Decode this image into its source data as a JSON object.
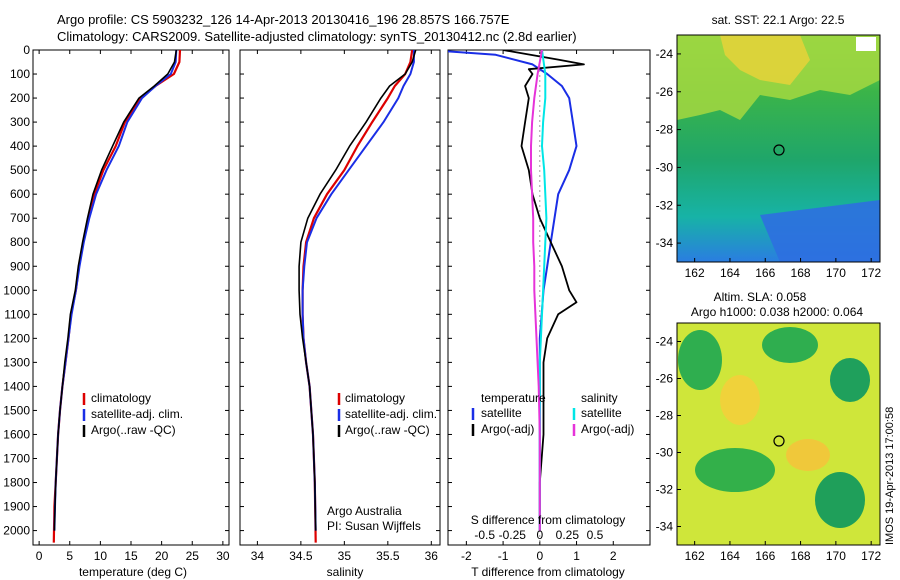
{
  "header": {
    "line1": "Argo profile: CS 5903232_126 14-Apr-2013 20130416_196 28.857S 166.757E",
    "line2": "Climatology: CARS2009. Satellite-adjusted climatology: synTS_20130412.nc (2.8d earlier)"
  },
  "colors": {
    "climatology": "#dd0000",
    "satellite": "#1a2ee6",
    "argo": "#000000",
    "satellite_s": "#00e6e6",
    "argo_s": "#e633d9"
  },
  "depth_ticks": [
    "0",
    "100",
    "200",
    "300",
    "400",
    "500",
    "600",
    "700",
    "800",
    "900",
    "1000",
    "1100",
    "1200",
    "1300",
    "1400",
    "1500",
    "1600",
    "1700",
    "1800",
    "1900",
    "2000"
  ],
  "panel_temperature": {
    "xlabel": "temperature (deg C)",
    "xticks": [
      "0",
      "5",
      "10",
      "15",
      "20",
      "25",
      "30"
    ],
    "legend": [
      "climatology",
      "satellite-adj. clim.",
      "Argo(..raw -QC)"
    ]
  },
  "panel_salinity": {
    "xlabel": "salinity",
    "xticks": [
      "34",
      "34.5",
      "35",
      "35.5",
      "36"
    ],
    "legend": [
      "climatology",
      "satellite-adj. clim.",
      "Argo(..raw -QC)"
    ],
    "credit1": "Argo Australia",
    "credit2": "PI: Susan Wijffels"
  },
  "panel_difference": {
    "xlabel": "T difference from climatology",
    "toplabel": "S difference from climatology",
    "s_ticks": [
      "-0.5",
      "-0.25",
      "0",
      "0.25",
      "0.5"
    ],
    "t_ticks": [
      "-2",
      "-1",
      "0",
      "1",
      "2"
    ],
    "legend_t_title": "temperature",
    "legend_s_title": "salinity",
    "legend_t": [
      "satellite",
      "Argo(-adj)"
    ],
    "legend_s": [
      "satellite",
      "Argo(-adj)"
    ]
  },
  "map_sst": {
    "title": "sat. SST: 22.1  Argo: 22.5",
    "yticks": [
      "-24",
      "-26",
      "-28",
      "-30",
      "-32",
      "-34"
    ],
    "xticks": [
      "162",
      "164",
      "166",
      "168",
      "170",
      "172"
    ]
  },
  "map_sla": {
    "title1": "Altim. SLA: 0.058",
    "title2": "Argo h1000: 0.038 h2000: 0.064",
    "yticks": [
      "-24",
      "-26",
      "-28",
      "-30",
      "-32",
      "-34"
    ],
    "xticks": [
      "162",
      "164",
      "166",
      "168",
      "170",
      "172"
    ]
  },
  "side_text": "IMOS 19-Apr-2013 17:00:58",
  "chart_data": [
    {
      "type": "line",
      "panel": "temperature",
      "xlabel": "temperature (deg C)",
      "xlim": [
        -1,
        31
      ],
      "ylim": [
        2060,
        0
      ],
      "series": [
        {
          "name": "climatology",
          "x": [
            23.0,
            22.9,
            22.0,
            19.0,
            16.5,
            14.0,
            12.5,
            10.5,
            9.0,
            8.0,
            7.2,
            6.5,
            6.0,
            5.2,
            4.8,
            4.3,
            3.8,
            3.4,
            3.1,
            2.9,
            2.7,
            2.5,
            2.4
          ],
          "y": [
            0,
            50,
            100,
            150,
            200,
            300,
            400,
            500,
            600,
            700,
            800,
            900,
            1000,
            1100,
            1200,
            1300,
            1400,
            1500,
            1600,
            1700,
            1800,
            1900,
            2050
          ]
        },
        {
          "name": "satellite-adj. clim.",
          "x": [
            22.4,
            22.3,
            21.5,
            19.0,
            16.8,
            14.4,
            13.0,
            11.0,
            9.3,
            8.2,
            7.3,
            6.6,
            6.0,
            5.3,
            4.8,
            4.3,
            3.8,
            3.4,
            3.1,
            2.9,
            2.7,
            2.6,
            2.5
          ],
          "y": [
            0,
            50,
            100,
            150,
            200,
            300,
            400,
            500,
            600,
            700,
            800,
            900,
            1000,
            1100,
            1200,
            1300,
            1400,
            1500,
            1600,
            1700,
            1800,
            1900,
            2000
          ]
        },
        {
          "name": "Argo(..raw -QC)",
          "x": [
            22.4,
            22.1,
            21.0,
            18.8,
            16.3,
            13.8,
            12.0,
            10.2,
            8.8,
            7.9,
            7.1,
            6.4,
            5.9,
            5.1,
            4.7,
            4.2,
            3.8,
            3.4,
            3.1,
            2.9,
            2.7,
            2.6,
            2.5
          ],
          "y": [
            0,
            50,
            100,
            150,
            200,
            300,
            400,
            500,
            600,
            700,
            800,
            900,
            1000,
            1100,
            1200,
            1300,
            1400,
            1500,
            1600,
            1700,
            1800,
            1900,
            2000
          ]
        }
      ]
    },
    {
      "type": "line",
      "panel": "salinity",
      "xlabel": "salinity",
      "xlim": [
        33.8,
        36.1
      ],
      "ylim": [
        2060,
        0
      ],
      "series": [
        {
          "name": "climatology",
          "x": [
            35.78,
            35.76,
            35.7,
            35.58,
            35.5,
            35.32,
            35.15,
            35.0,
            34.8,
            34.65,
            34.56,
            34.53,
            34.52,
            34.52,
            34.53,
            34.56,
            34.6,
            34.62,
            34.64,
            34.65,
            34.66,
            34.67
          ],
          "y": [
            0,
            50,
            100,
            150,
            200,
            300,
            400,
            500,
            600,
            700,
            800,
            900,
            1000,
            1100,
            1200,
            1300,
            1400,
            1500,
            1600,
            1700,
            1800,
            2050
          ]
        },
        {
          "name": "satellite-adj. clim.",
          "x": [
            35.8,
            35.8,
            35.76,
            35.68,
            35.62,
            35.45,
            35.25,
            35.05,
            34.85,
            34.68,
            34.57,
            34.54,
            34.52,
            34.52,
            34.53,
            34.56,
            34.6,
            34.62,
            34.64,
            34.65,
            34.66,
            34.67
          ],
          "y": [
            0,
            50,
            100,
            150,
            200,
            300,
            400,
            500,
            600,
            700,
            800,
            900,
            1000,
            1100,
            1200,
            1300,
            1400,
            1500,
            1600,
            1700,
            1800,
            2000
          ]
        },
        {
          "name": "Argo(..raw -QC)",
          "x": [
            35.82,
            35.78,
            35.7,
            35.52,
            35.42,
            35.25,
            35.06,
            34.9,
            34.72,
            34.58,
            34.5,
            34.48,
            34.48,
            34.49,
            34.52,
            34.56,
            34.6,
            34.62,
            34.64,
            34.65,
            34.66,
            34.67
          ],
          "y": [
            0,
            50,
            100,
            150,
            200,
            300,
            400,
            500,
            600,
            700,
            800,
            900,
            1000,
            1100,
            1200,
            1300,
            1400,
            1500,
            1600,
            1700,
            1800,
            2000
          ]
        }
      ]
    },
    {
      "type": "line",
      "panel": "difference",
      "xlabel": "T difference from climatology",
      "xlim": [
        -2.5,
        3
      ],
      "ylim": [
        2060,
        0
      ],
      "series": [
        {
          "name": "temperature satellite",
          "x": [
            -3.0,
            -1.2,
            -0.2,
            0.2,
            0.6,
            0.8,
            0.9,
            1.0,
            0.8,
            0.5,
            0.4,
            0.3,
            0.2,
            0.1,
            0.05,
            0.0,
            0.0,
            0.0,
            0.0,
            0.0
          ],
          "y": [
            0,
            20,
            60,
            100,
            150,
            200,
            300,
            400,
            500,
            600,
            700,
            800,
            900,
            1000,
            1100,
            1200,
            1400,
            1600,
            1800,
            2000
          ]
        },
        {
          "name": "temperature Argo(-adj)",
          "x": [
            -1.0,
            0.5,
            1.2,
            -0.3,
            -0.2,
            -0.4,
            -0.3,
            -0.4,
            -0.5,
            -0.3,
            -0.2,
            0.0,
            0.3,
            0.6,
            0.8,
            1.0,
            0.5,
            0.2,
            0.1,
            0.1,
            0.1,
            0.1,
            0.0,
            0.0
          ],
          "y": [
            0,
            40,
            60,
            80,
            100,
            150,
            200,
            300,
            400,
            500,
            600,
            700,
            800,
            900,
            1000,
            1050,
            1100,
            1200,
            1300,
            1400,
            1500,
            1600,
            1800,
            2000
          ]
        },
        {
          "name": "salinity satellite",
          "x": [
            0.02,
            0.05,
            0.05,
            0.03,
            0.02,
            0.04,
            0.05,
            0.06,
            0.05,
            0.04,
            0.03,
            0.02,
            0.01,
            0.0,
            0.0,
            0.0,
            0.0,
            0.0
          ],
          "y": [
            0,
            100,
            200,
            300,
            400,
            500,
            600,
            700,
            800,
            900,
            1000,
            1100,
            1200,
            1300,
            1400,
            1600,
            1800,
            2000
          ]
        },
        {
          "name": "salinity Argo(-adj)",
          "x": [
            0.02,
            -0.02,
            -0.05,
            -0.07,
            -0.08,
            -0.08,
            -0.07,
            -0.06,
            -0.06,
            -0.05,
            -0.05,
            -0.04,
            -0.03,
            -0.02,
            -0.01,
            0.0,
            0.0
          ],
          "y": [
            0,
            100,
            200,
            300,
            400,
            500,
            600,
            700,
            800,
            900,
            1000,
            1100,
            1200,
            1300,
            1400,
            1600,
            2000
          ]
        }
      ]
    },
    {
      "type": "heatmap",
      "panel": "map_sst",
      "title": "sat. SST: 22.1  Argo: 22.5",
      "xlim": [
        161,
        172.5
      ],
      "ylim": [
        -35,
        -23
      ]
    },
    {
      "type": "heatmap",
      "panel": "map_sla",
      "title": "Altim. SLA: 0.058",
      "xlim": [
        161,
        172.5
      ],
      "ylim": [
        -35,
        -23
      ]
    }
  ]
}
